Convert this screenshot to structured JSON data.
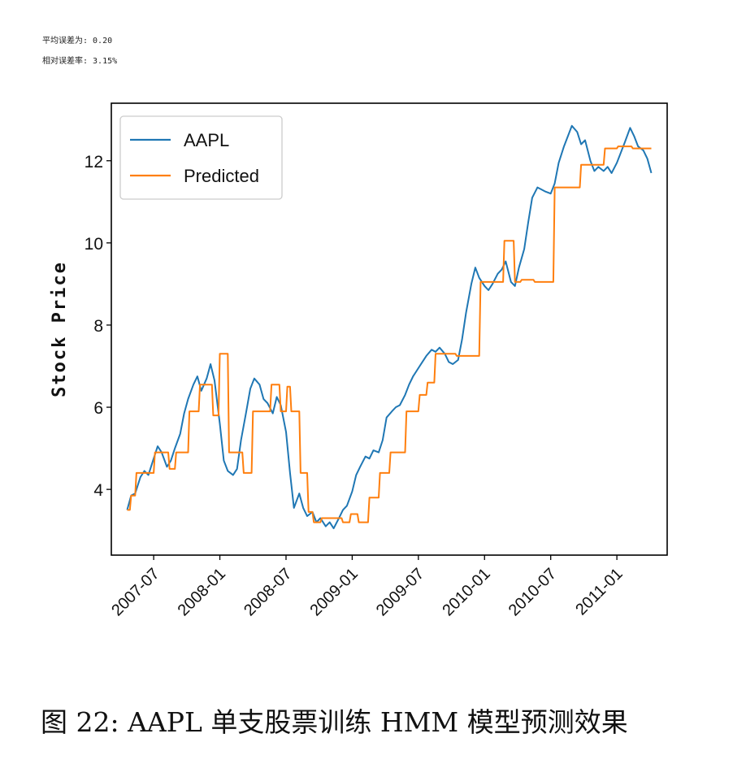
{
  "stats": {
    "mean_error": "平均误差为: 0.20",
    "relative_error": "相对误差率: 3.15%"
  },
  "caption": "图 22: AAPL 单支股票训练 HMM 模型预测效果",
  "chart_data": {
    "type": "line",
    "title": "",
    "xlabel": "",
    "ylabel": "Stock Price",
    "ylim": [
      2.4,
      13.4
    ],
    "yticks": [
      4,
      6,
      8,
      10,
      12
    ],
    "xtick_labels": [
      "2007-07",
      "2008-01",
      "2008-07",
      "2009-01",
      "2009-07",
      "2010-01",
      "2010-07",
      "2011-01"
    ],
    "xlim_months": [
      2007.18,
      2011.38
    ],
    "legend_position": "top-left",
    "colors": {
      "aapl": "#1f77b4",
      "predicted": "#ff7f0e"
    },
    "series": [
      {
        "name": "AAPL",
        "x": [
          2007.3,
          2007.33,
          2007.36,
          2007.4,
          2007.43,
          2007.46,
          2007.5,
          2007.53,
          2007.56,
          2007.6,
          2007.63,
          2007.66,
          2007.7,
          2007.73,
          2007.76,
          2007.8,
          2007.83,
          2007.86,
          2007.9,
          2007.93,
          2007.96,
          2008.0,
          2008.03,
          2008.06,
          2008.1,
          2008.13,
          2008.16,
          2008.2,
          2008.23,
          2008.26,
          2008.3,
          2008.33,
          2008.36,
          2008.4,
          2008.43,
          2008.46,
          2008.5,
          2008.53,
          2008.56,
          2008.6,
          2008.63,
          2008.66,
          2008.7,
          2008.73,
          2008.76,
          2008.8,
          2008.83,
          2008.86,
          2008.9,
          2008.93,
          2008.96,
          2009.0,
          2009.03,
          2009.06,
          2009.1,
          2009.13,
          2009.16,
          2009.2,
          2009.23,
          2009.26,
          2009.3,
          2009.33,
          2009.36,
          2009.4,
          2009.43,
          2009.46,
          2009.5,
          2009.53,
          2009.56,
          2009.6,
          2009.63,
          2009.66,
          2009.7,
          2009.73,
          2009.76,
          2009.8,
          2009.83,
          2009.86,
          2009.9,
          2009.93,
          2009.96,
          2010.0,
          2010.03,
          2010.06,
          2010.1,
          2010.13,
          2010.16,
          2010.2,
          2010.23,
          2010.26,
          2010.3,
          2010.33,
          2010.36,
          2010.4,
          2010.43,
          2010.46,
          2010.5,
          2010.53,
          2010.56,
          2010.6,
          2010.63,
          2010.66,
          2010.7,
          2010.73,
          2010.76,
          2010.8,
          2010.83,
          2010.86,
          2010.9,
          2010.93,
          2010.96,
          2011.0,
          2011.03,
          2011.06,
          2011.1,
          2011.13,
          2011.16,
          2011.2,
          2011.23,
          2011.26
        ],
        "values": [
          3.5,
          3.85,
          3.9,
          4.3,
          4.45,
          4.35,
          4.75,
          5.05,
          4.9,
          4.55,
          4.7,
          5.0,
          5.35,
          5.85,
          6.2,
          6.55,
          6.75,
          6.4,
          6.7,
          7.05,
          6.65,
          5.6,
          4.7,
          4.45,
          4.35,
          4.5,
          5.2,
          5.9,
          6.45,
          6.7,
          6.55,
          6.2,
          6.1,
          5.85,
          6.25,
          6.05,
          5.4,
          4.4,
          3.55,
          3.9,
          3.55,
          3.35,
          3.45,
          3.2,
          3.3,
          3.1,
          3.2,
          3.05,
          3.3,
          3.5,
          3.6,
          3.95,
          4.35,
          4.55,
          4.8,
          4.75,
          4.95,
          4.9,
          5.2,
          5.75,
          5.9,
          6.0,
          6.05,
          6.3,
          6.55,
          6.75,
          6.95,
          7.1,
          7.25,
          7.4,
          7.35,
          7.45,
          7.3,
          7.1,
          7.05,
          7.15,
          7.65,
          8.3,
          9.0,
          9.4,
          9.15,
          8.95,
          8.85,
          9.0,
          9.25,
          9.35,
          9.55,
          9.05,
          8.95,
          9.4,
          9.85,
          10.5,
          11.1,
          11.35,
          11.3,
          11.25,
          11.2,
          11.45,
          11.95,
          12.35,
          12.6,
          12.85,
          12.7,
          12.4,
          12.5,
          12.0,
          11.75,
          11.85,
          11.75,
          11.85,
          11.7,
          11.95,
          12.2,
          12.45,
          12.8,
          12.6,
          12.35,
          12.25,
          12.05,
          11.7
        ]
      },
      {
        "name": "Predicted",
        "x": [
          2007.3,
          2007.32,
          2007.33,
          2007.36,
          2007.37,
          2007.43,
          2007.44,
          2007.5,
          2007.51,
          2007.61,
          2007.62,
          2007.66,
          2007.67,
          2007.76,
          2007.77,
          2007.84,
          2007.85,
          2007.94,
          2007.95,
          2007.99,
          2008.0,
          2008.06,
          2008.07,
          2008.17,
          2008.18,
          2008.24,
          2008.25,
          2008.38,
          2008.39,
          2008.45,
          2008.46,
          2008.5,
          2008.51,
          2008.53,
          2008.54,
          2008.6,
          2008.61,
          2008.66,
          2008.67,
          2008.7,
          2008.71,
          2008.76,
          2008.77,
          2008.92,
          2008.93,
          2008.98,
          2008.99,
          2009.04,
          2009.05,
          2009.12,
          2009.13,
          2009.2,
          2009.21,
          2009.28,
          2009.29,
          2009.4,
          2009.41,
          2009.5,
          2009.51,
          2009.56,
          2009.57,
          2009.62,
          2009.63,
          2009.78,
          2009.79,
          2009.96,
          2009.97,
          2010.14,
          2010.15,
          2010.22,
          2010.23,
          2010.27,
          2010.28,
          2010.37,
          2010.38,
          2010.52,
          2010.53,
          2010.72,
          2010.73,
          2010.9,
          2010.91,
          2011.0,
          2011.01,
          2011.11,
          2011.12,
          2011.26
        ],
        "values": [
          3.5,
          3.5,
          3.85,
          3.85,
          4.4,
          4.4,
          4.4,
          4.4,
          4.9,
          4.9,
          4.5,
          4.5,
          4.9,
          4.9,
          5.9,
          5.9,
          6.55,
          6.55,
          5.8,
          5.8,
          7.3,
          7.3,
          4.9,
          4.9,
          4.4,
          4.4,
          5.9,
          5.9,
          6.55,
          6.55,
          5.9,
          5.9,
          6.5,
          6.5,
          5.9,
          5.9,
          4.4,
          4.4,
          3.45,
          3.45,
          3.2,
          3.2,
          3.3,
          3.3,
          3.2,
          3.2,
          3.4,
          3.4,
          3.2,
          3.2,
          3.8,
          3.8,
          4.4,
          4.4,
          4.9,
          4.9,
          5.9,
          5.9,
          6.3,
          6.3,
          6.6,
          6.6,
          7.3,
          7.3,
          7.25,
          7.25,
          9.05,
          9.05,
          10.05,
          10.05,
          9.05,
          9.05,
          9.1,
          9.1,
          9.05,
          9.05,
          11.35,
          11.35,
          11.9,
          11.9,
          12.3,
          12.3,
          12.35,
          12.35,
          12.3,
          12.3
        ]
      }
    ]
  }
}
